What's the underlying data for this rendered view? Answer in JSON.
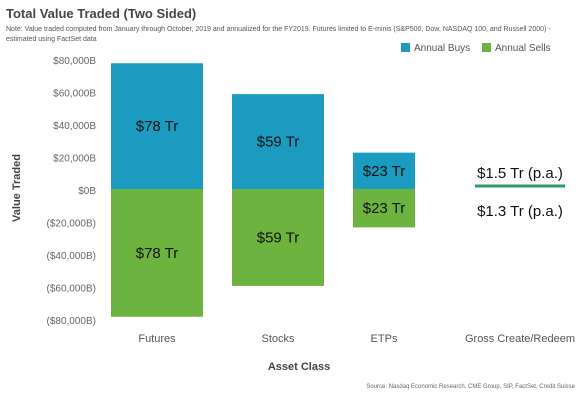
{
  "chart_data": {
    "type": "bar",
    "title": "Total Value Traded (Two Sided)",
    "note": "Note: Value traded computed from January through October, 2019 and annualized for the FY2019. Futures limited to E-minis (S&P500, Dow, NASDAQ 100, and Russell 2000) - estimated using FactSet data",
    "source": "Source: Nasdaq Economic Research, CME Group, SIP, FactSet, Credit Suisse",
    "xlabel": "Asset Class",
    "ylabel": "Value Traded",
    "ylim": [
      -80000,
      80000
    ],
    "y_ticks": [
      80000,
      60000,
      40000,
      20000,
      0,
      -20000,
      -40000,
      -60000,
      -80000
    ],
    "y_tick_labels": [
      "$80,000B",
      "$60,000B",
      "$40,000B",
      "$20,000B",
      "$0B",
      "($20,000B)",
      "($40,000B)",
      "($60,000B)",
      "($80,000B)"
    ],
    "categories": [
      "Futures",
      "Stocks",
      "ETPs",
      "Gross Create/Redeem"
    ],
    "series": [
      {
        "name": "Annual Buys",
        "color": "#1a9bbf",
        "values": [
          78000,
          59000,
          23000,
          1500
        ],
        "labels": [
          "$78 Tr",
          "$59 Tr",
          "$23 Tr",
          "$1.5 Tr (p.a.)"
        ]
      },
      {
        "name": "Annual Sells",
        "color": "#6db33f",
        "values": [
          -78000,
          -59000,
          -23000,
          -1300
        ],
        "labels": [
          "$78 Tr",
          "$59 Tr",
          "$23 Tr",
          "$1.3 Tr (p.a.)"
        ]
      }
    ],
    "legend_position": "top-right",
    "grid": false
  }
}
